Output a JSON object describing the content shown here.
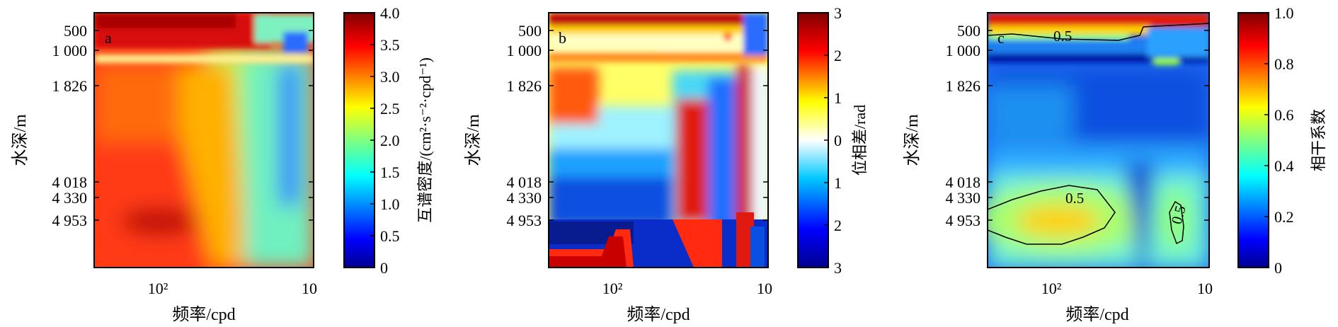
{
  "chart_data": [
    {
      "type": "heatmap",
      "panel_label": "a",
      "xlabel": "频率/cpd",
      "ylabel": "水深/m",
      "x_tick_labels": [
        "10²",
        "10"
      ],
      "y_tick_labels": [
        "500",
        "1 000",
        "1 826",
        "4 018",
        "4 330",
        "4 953"
      ],
      "y_tick_values": [
        500,
        1000,
        1826,
        4018,
        4330,
        4953
      ],
      "colorbar": {
        "label": "互谱密度/(cm²·s⁻²·cpd⁻¹)",
        "range": [
          0,
          4.0
        ],
        "tick_labels": [
          "0",
          "0.5",
          "1.0",
          "1.5",
          "2.0",
          "2.5",
          "3.0",
          "3.5",
          "4.0"
        ],
        "colormap": "jet"
      }
    },
    {
      "type": "heatmap",
      "panel_label": "b",
      "xlabel": "频率/cpd",
      "ylabel": "水深/m",
      "x_tick_labels": [
        "10²",
        "10"
      ],
      "y_tick_labels": [
        "500",
        "1 000",
        "1 826",
        "4 018",
        "4 330",
        "4 953"
      ],
      "y_tick_values": [
        500,
        1000,
        1826,
        4018,
        4330,
        4953
      ],
      "colorbar": {
        "label": "位相差/rad",
        "range": [
          -3,
          3
        ],
        "tick_labels": [
          "3",
          "2",
          "1",
          "0",
          "1",
          "2",
          "3"
        ],
        "colormap": "jet"
      }
    },
    {
      "type": "heatmap",
      "panel_label": "c",
      "xlabel": "频率/cpd",
      "ylabel": "水深/m",
      "x_tick_labels": [
        "10²",
        "10"
      ],
      "y_tick_labels": [
        "500",
        "1 000",
        "1 826",
        "4 018",
        "4 330",
        "4 953"
      ],
      "y_tick_values": [
        500,
        1000,
        1826,
        4018,
        4330,
        4953
      ],
      "contour_labels": [
        "0.5",
        "0.5",
        "0.5"
      ],
      "colorbar": {
        "label": "相干系数",
        "range": [
          0,
          1.0
        ],
        "tick_labels": [
          "0",
          "0.2",
          "0.4",
          "0.6",
          "0.8",
          "1.0"
        ],
        "colormap": "jet"
      }
    }
  ]
}
